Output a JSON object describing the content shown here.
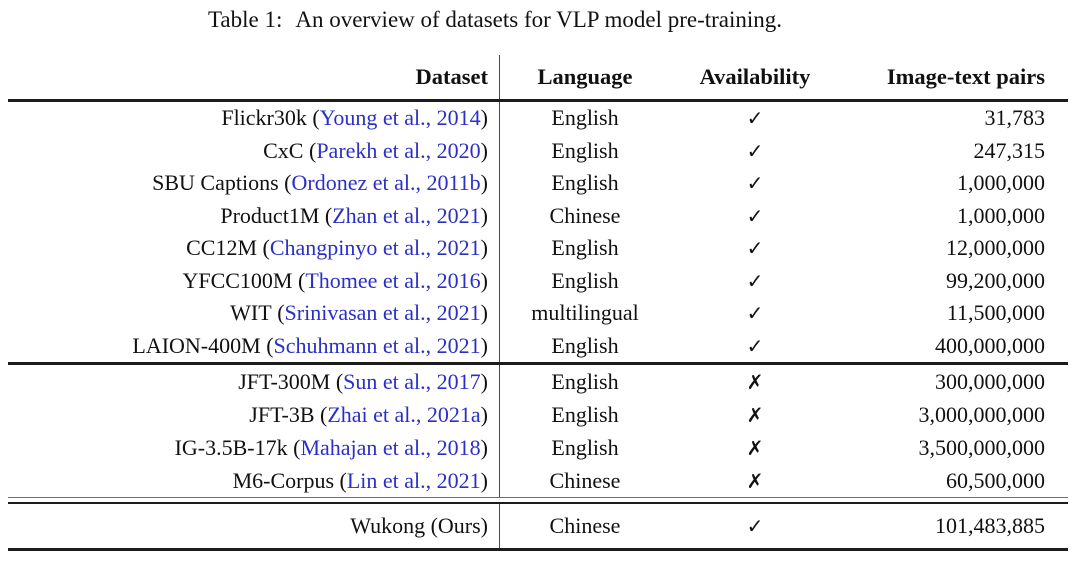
{
  "caption": {
    "label": "Table 1:",
    "text": "An overview of datasets for VLP model pre-training."
  },
  "columns": [
    "Dataset",
    "Language",
    "Availability",
    "Image-text pairs"
  ],
  "symbols": {
    "available": "✓",
    "unavailable": "✗"
  },
  "colors": {
    "citation_link": "#2b2fc7",
    "text": "#111111",
    "rule": "#1c1c1c"
  },
  "sections": [
    {
      "rows": [
        {
          "dataset": "Flickr30k",
          "cite": "Young et al., 2014",
          "language": "English",
          "available": true,
          "pairs": "31,783"
        },
        {
          "dataset": "CxC",
          "cite": "Parekh et al., 2020",
          "language": "English",
          "available": true,
          "pairs": "247,315"
        },
        {
          "dataset": "SBU Captions",
          "cite": "Ordonez et al., 2011b",
          "language": "English",
          "available": true,
          "pairs": "1,000,000"
        },
        {
          "dataset": "Product1M",
          "cite": "Zhan et al., 2021",
          "language": "Chinese",
          "available": true,
          "pairs": "1,000,000"
        },
        {
          "dataset": "CC12M",
          "cite": "Changpinyo et al., 2021",
          "language": "English",
          "available": true,
          "pairs": "12,000,000"
        },
        {
          "dataset": "YFCC100M",
          "cite": "Thomee et al., 2016",
          "language": "English",
          "available": true,
          "pairs": "99,200,000"
        },
        {
          "dataset": "WIT",
          "cite": "Srinivasan et al., 2021",
          "language": "multilingual",
          "available": true,
          "pairs": "11,500,000"
        },
        {
          "dataset": "LAION-400M",
          "cite": "Schuhmann et al., 2021",
          "language": "English",
          "available": true,
          "pairs": "400,000,000"
        }
      ]
    },
    {
      "rows": [
        {
          "dataset": "JFT-300M",
          "cite": "Sun et al., 2017",
          "language": "English",
          "available": false,
          "pairs": "300,000,000"
        },
        {
          "dataset": "JFT-3B",
          "cite": "Zhai et al., 2021a",
          "language": "English",
          "available": false,
          "pairs": "3,000,000,000"
        },
        {
          "dataset": "IG-3.5B-17k",
          "cite": "Mahajan et al., 2018",
          "language": "English",
          "available": false,
          "pairs": "3,500,000,000"
        },
        {
          "dataset": "M6-Corpus",
          "cite": "Lin et al., 2021",
          "language": "Chinese",
          "available": false,
          "pairs": "60,500,000"
        }
      ]
    },
    {
      "rows": [
        {
          "dataset": "Wukong (Ours)",
          "cite": null,
          "language": "Chinese",
          "available": true,
          "pairs": "101,483,885"
        }
      ]
    }
  ],
  "chart_data": {
    "type": "table",
    "title": "Table 1: An overview of datasets for VLP model pre-training.",
    "columns": [
      "Dataset",
      "Language",
      "Availability",
      "Image-text pairs"
    ],
    "rows": [
      [
        "Flickr30k (Young et al., 2014)",
        "English",
        "yes",
        31783
      ],
      [
        "CxC (Parekh et al., 2020)",
        "English",
        "yes",
        247315
      ],
      [
        "SBU Captions (Ordonez et al., 2011b)",
        "English",
        "yes",
        1000000
      ],
      [
        "Product1M (Zhan et al., 2021)",
        "Chinese",
        "yes",
        1000000
      ],
      [
        "CC12M (Changpinyo et al., 2021)",
        "English",
        "yes",
        12000000
      ],
      [
        "YFCC100M (Thomee et al., 2016)",
        "English",
        "yes",
        99200000
      ],
      [
        "WIT (Srinivasan et al., 2021)",
        "multilingual",
        "yes",
        11500000
      ],
      [
        "LAION-400M (Schuhmann et al., 2021)",
        "English",
        "yes",
        400000000
      ],
      [
        "JFT-300M (Sun et al., 2017)",
        "English",
        "no",
        300000000
      ],
      [
        "JFT-3B (Zhai et al., 2021a)",
        "English",
        "no",
        3000000000
      ],
      [
        "IG-3.5B-17k (Mahajan et al., 2018)",
        "English",
        "no",
        3500000000
      ],
      [
        "M6-Corpus (Lin et al., 2021)",
        "Chinese",
        "no",
        60500000
      ],
      [
        "Wukong (Ours)",
        "Chinese",
        "yes",
        101483885
      ]
    ]
  }
}
